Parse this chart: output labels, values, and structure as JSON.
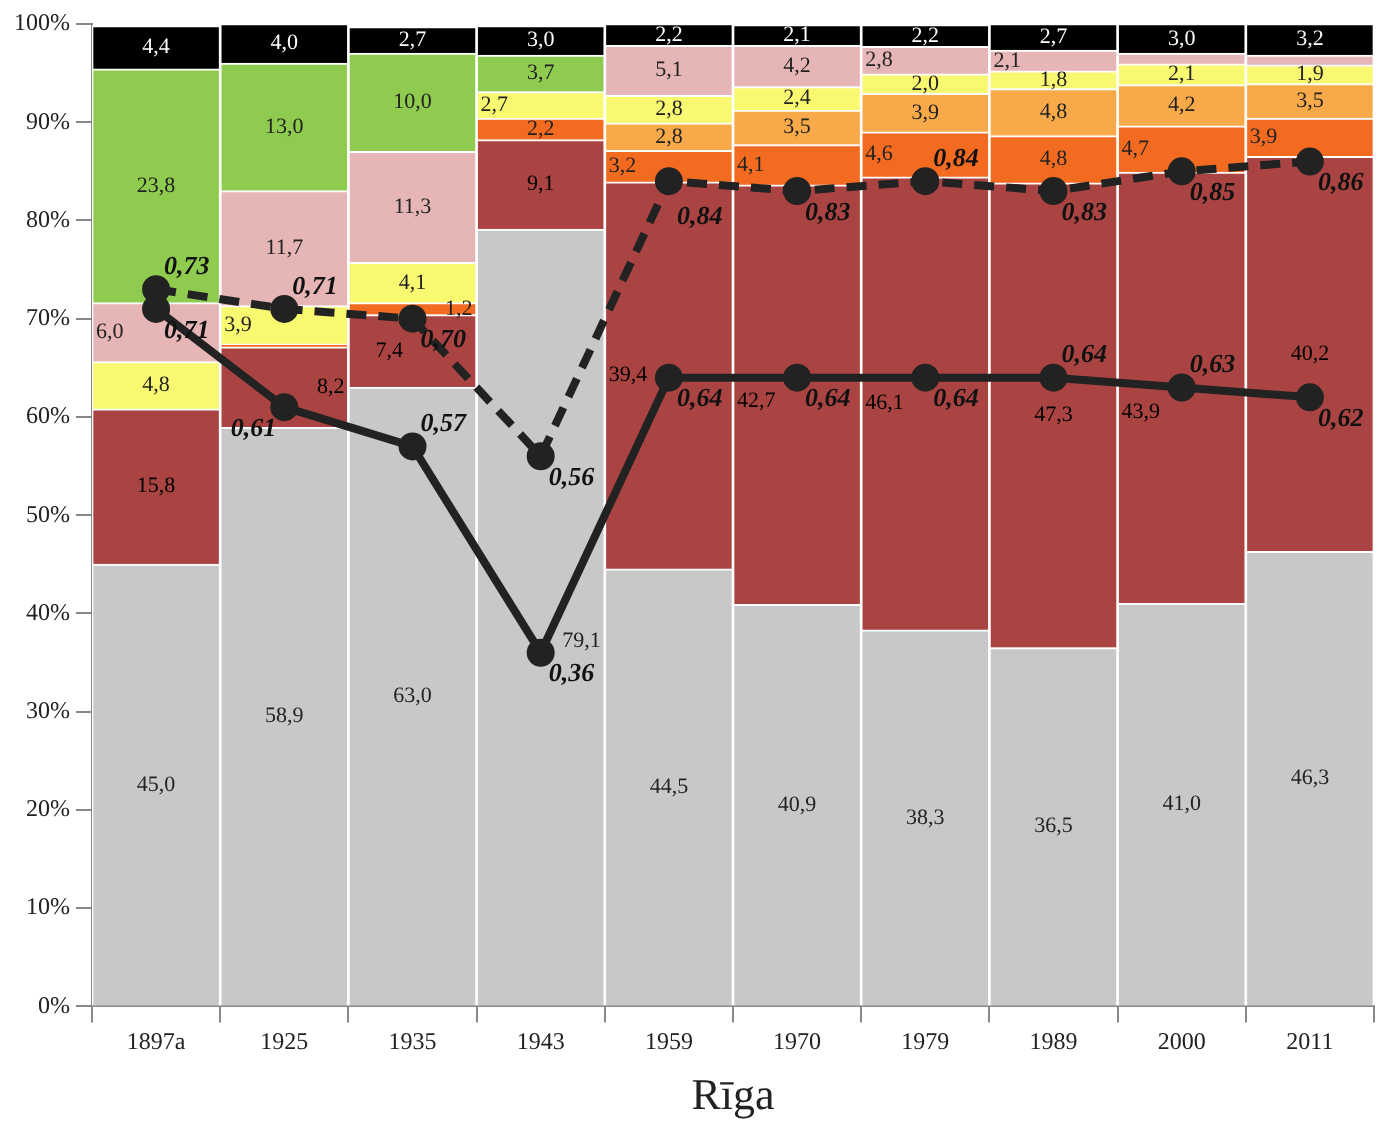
{
  "chart_data": {
    "type": "bar",
    "stacked": true,
    "xlabel": "Rīga",
    "grid": false,
    "legend": false,
    "marker": "circle",
    "categories": [
      "1897a",
      "1925",
      "1935",
      "1943",
      "1959",
      "1970",
      "1979",
      "1989",
      "2000",
      "2011"
    ],
    "ylim": [
      0,
      100
    ],
    "y2lim": [
      0,
      1
    ],
    "yticks": [
      {
        "value": 0,
        "label": "0%"
      },
      {
        "value": 10,
        "label": "10%"
      },
      {
        "value": 20,
        "label": "20%"
      },
      {
        "value": 30,
        "label": "30%"
      },
      {
        "value": 40,
        "label": "40%"
      },
      {
        "value": 50,
        "label": "50%"
      },
      {
        "value": 60,
        "label": "60%"
      },
      {
        "value": 70,
        "label": "70%"
      },
      {
        "value": 80,
        "label": "80%"
      },
      {
        "value": 90,
        "label": "90%"
      },
      {
        "value": 100,
        "label": "100%"
      }
    ],
    "series": [
      {
        "color": "#c8c8c8",
        "values": [
          45.0,
          58.9,
          63.0,
          79.1,
          44.5,
          40.9,
          38.3,
          36.5,
          41.0,
          46.3
        ],
        "value_labels": [
          "45,0",
          "58,9",
          "63,0",
          "79,1",
          "44,5",
          "40,9",
          "38,3",
          "36,5",
          "41,0",
          "46,3"
        ]
      },
      {
        "color": "#a94442",
        "values": [
          15.8,
          8.2,
          7.4,
          9.1,
          39.4,
          42.7,
          46.1,
          47.3,
          43.9,
          40.2
        ],
        "value_labels": [
          "15,8",
          "8,2",
          "7,4",
          "9,1",
          "39,4",
          "42,7",
          "46,1",
          "47,3",
          "43,9",
          "40,2"
        ]
      },
      {
        "color": "#f36b21",
        "values": [
          null,
          0.3,
          1.2,
          2.2,
          3.2,
          4.1,
          4.6,
          4.8,
          4.7,
          3.9
        ],
        "value_labels": [
          null,
          null,
          "1,2",
          "2,2",
          "3,2",
          "4,1",
          "4,6",
          "4,8",
          "4,7",
          "3,9"
        ]
      },
      {
        "color": "#f8aa4a",
        "values": [
          null,
          null,
          null,
          null,
          2.8,
          3.5,
          3.9,
          4.8,
          4.2,
          3.5
        ],
        "value_labels": [
          null,
          null,
          null,
          null,
          "2,8",
          "3,5",
          "3,9",
          "4,8",
          "4,2",
          "3,5"
        ]
      },
      {
        "color": "#f9f871",
        "values": [
          4.8,
          3.9,
          4.1,
          2.7,
          2.8,
          2.4,
          2.0,
          1.8,
          2.1,
          1.9
        ],
        "value_labels": [
          "4,8",
          "3,9",
          "4,1",
          "2,7",
          "2,8",
          "2,4",
          "2,0",
          "1,8",
          "2,1",
          "1,9"
        ]
      },
      {
        "color": "#e6b5b5",
        "values": [
          6.0,
          11.7,
          11.3,
          null,
          5.1,
          4.2,
          2.8,
          2.1,
          1.1,
          1.0
        ],
        "value_labels": [
          "6,0",
          "11,7",
          "11,3",
          null,
          "5,1",
          "4,2",
          "2,8",
          "2,1",
          null,
          null
        ]
      },
      {
        "color": "#8ecb4f",
        "values": [
          23.8,
          13.0,
          10.0,
          3.7,
          null,
          null,
          null,
          null,
          null,
          null
        ],
        "value_labels": [
          "23,8",
          "13,0",
          "10,0",
          "3,7",
          null,
          null,
          null,
          null,
          null,
          null
        ]
      },
      {
        "color": "#000000",
        "values": [
          4.4,
          4.0,
          2.7,
          3.0,
          2.2,
          2.1,
          2.2,
          2.7,
          3.0,
          3.2
        ],
        "value_labels": [
          "4,4",
          "4,0",
          "2,7",
          "3,0",
          "2,2",
          "2,1",
          "2,2",
          "2,7",
          "3,0",
          "3,2"
        ]
      },
      {
        "type": "line",
        "axis": "y2",
        "line_style": "solid",
        "color": "#222222",
        "values": [
          0.71,
          0.61,
          0.57,
          0.36,
          0.64,
          0.64,
          0.64,
          0.64,
          0.63,
          0.62
        ],
        "value_labels": [
          "0,71",
          "0,61",
          "0,57",
          "0,36",
          "0,64",
          "0,64",
          "0,64",
          "0,64",
          "0,63",
          "0,62"
        ]
      },
      {
        "type": "line",
        "axis": "y2",
        "line_style": "dashed",
        "color": "#222222",
        "values": [
          0.73,
          0.71,
          0.7,
          0.56,
          0.84,
          0.83,
          0.84,
          0.83,
          0.85,
          0.86
        ],
        "value_labels": [
          "0,73",
          "0,71",
          "0,70",
          "0,56",
          "0,84",
          "0,83",
          "0,84",
          "0,83",
          "0,85",
          "0,86"
        ]
      }
    ]
  }
}
